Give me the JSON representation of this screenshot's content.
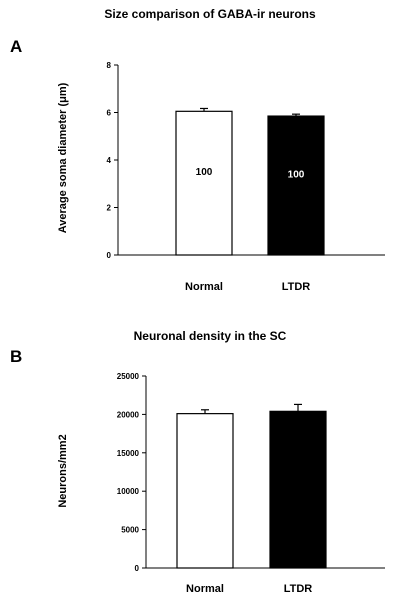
{
  "chart_data": [
    {
      "type": "bar",
      "panel_label": "A",
      "title": "Size comparison of GABA-ir neurons",
      "ylabel": "Average soma diameter (μm)",
      "categories": [
        "Normal",
        "LTDR"
      ],
      "values": [
        6.05,
        5.85
      ],
      "errors": [
        0.12,
        0.08
      ],
      "data_labels": [
        "100",
        "100"
      ],
      "bar_colors": [
        "#ffffff",
        "#000000"
      ],
      "data_label_colors": [
        "#000000",
        "#ffffff"
      ],
      "ylim": [
        0,
        8
      ],
      "yticks": [
        "0",
        "2",
        "4",
        "6",
        "8"
      ],
      "ytick_values": [
        0,
        2,
        4,
        6,
        8
      ],
      "grid": false,
      "legend": "none"
    },
    {
      "type": "bar",
      "panel_label": "B",
      "title": "Neuronal density in the SC",
      "ylabel": "Neurons/mm2",
      "categories": [
        "Normal",
        "LTDR"
      ],
      "values": [
        20100,
        20400
      ],
      "errors": [
        500,
        900
      ],
      "bar_colors": [
        "#ffffff",
        "#000000"
      ],
      "ylim": [
        0,
        25000
      ],
      "yticks": [
        "0",
        "5000",
        "10000",
        "15000",
        "20000",
        "25000"
      ],
      "ytick_values": [
        0,
        5000,
        10000,
        15000,
        20000,
        25000
      ],
      "grid": false,
      "legend": "none"
    }
  ]
}
